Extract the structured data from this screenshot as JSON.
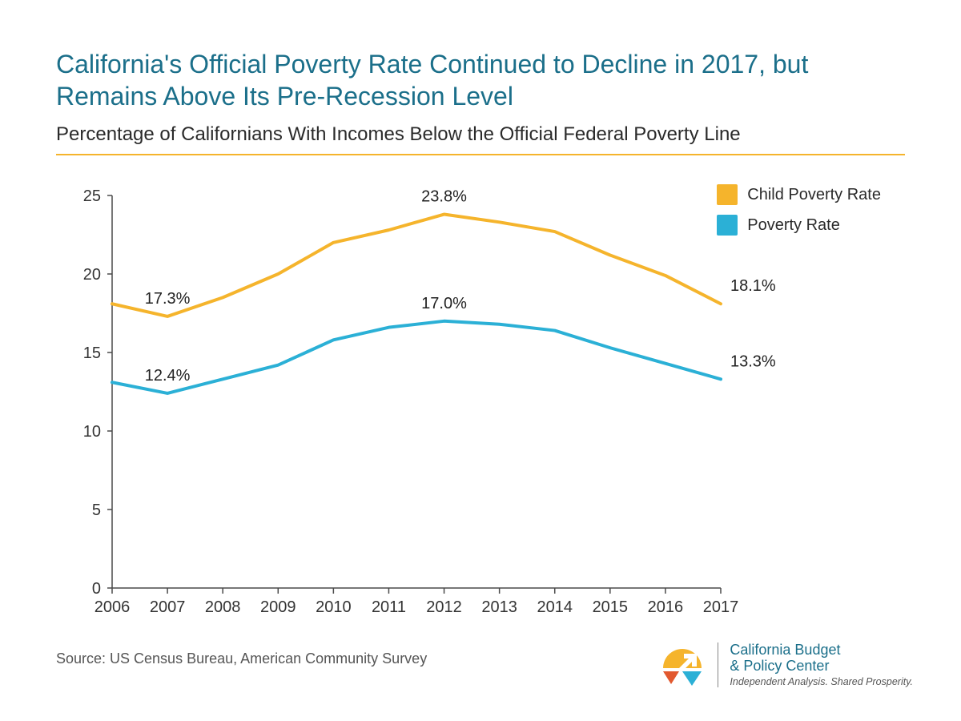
{
  "title": "California's Official Poverty Rate Continued to Decline in 2017, but Remains Above Its Pre-Recession Level",
  "subtitle": "Percentage of Californians With Incomes Below the Official Federal Poverty Line",
  "source": "Source: US Census Bureau, American Community Survey",
  "chart": {
    "type": "line",
    "background_color": "#ffffff",
    "rule_color": "#f5b42c",
    "axis_color": "#4a4a4a",
    "tick_label_color": "#333333",
    "tick_fontsize": 20,
    "data_label_fontsize": 20,
    "line_width": 4,
    "xlim": [
      2006,
      2017
    ],
    "ylim": [
      0,
      25
    ],
    "ytick_step": 5,
    "x_categories": [
      "2006",
      "2007",
      "2008",
      "2009",
      "2010",
      "2011",
      "2012",
      "2013",
      "2014",
      "2015",
      "2016",
      "2017"
    ],
    "series": [
      {
        "name": "Child Poverty Rate",
        "color": "#f5b42c",
        "values": [
          18.1,
          17.3,
          18.5,
          20.0,
          22.0,
          22.8,
          23.8,
          23.3,
          22.7,
          21.2,
          19.9,
          18.1
        ],
        "labels": {
          "2007": "17.3%",
          "2012": "23.8%",
          "2017": "18.1%"
        }
      },
      {
        "name": "Poverty Rate",
        "color": "#2bb0d6",
        "values": [
          13.1,
          12.4,
          13.3,
          14.2,
          15.8,
          16.6,
          17.0,
          16.8,
          16.4,
          15.3,
          14.3,
          13.3
        ],
        "labels": {
          "2007": "12.4%",
          "2012": "17.0%",
          "2017": "13.3%"
        }
      }
    ]
  },
  "legend": {
    "items": [
      {
        "label": "Child Poverty Rate",
        "color": "#f5b42c"
      },
      {
        "label": "Poverty Rate",
        "color": "#2bb0d6"
      }
    ]
  },
  "footer": {
    "org_line1": "California Budget",
    "org_line2": "& Policy Center",
    "tagline": "Independent Analysis. Shared Prosperity.",
    "logo_colors": {
      "sun": "#f5b42c",
      "arrow": "#ffffff",
      "wedge1": "#e2592f",
      "wedge2": "#2bb0d6"
    }
  }
}
